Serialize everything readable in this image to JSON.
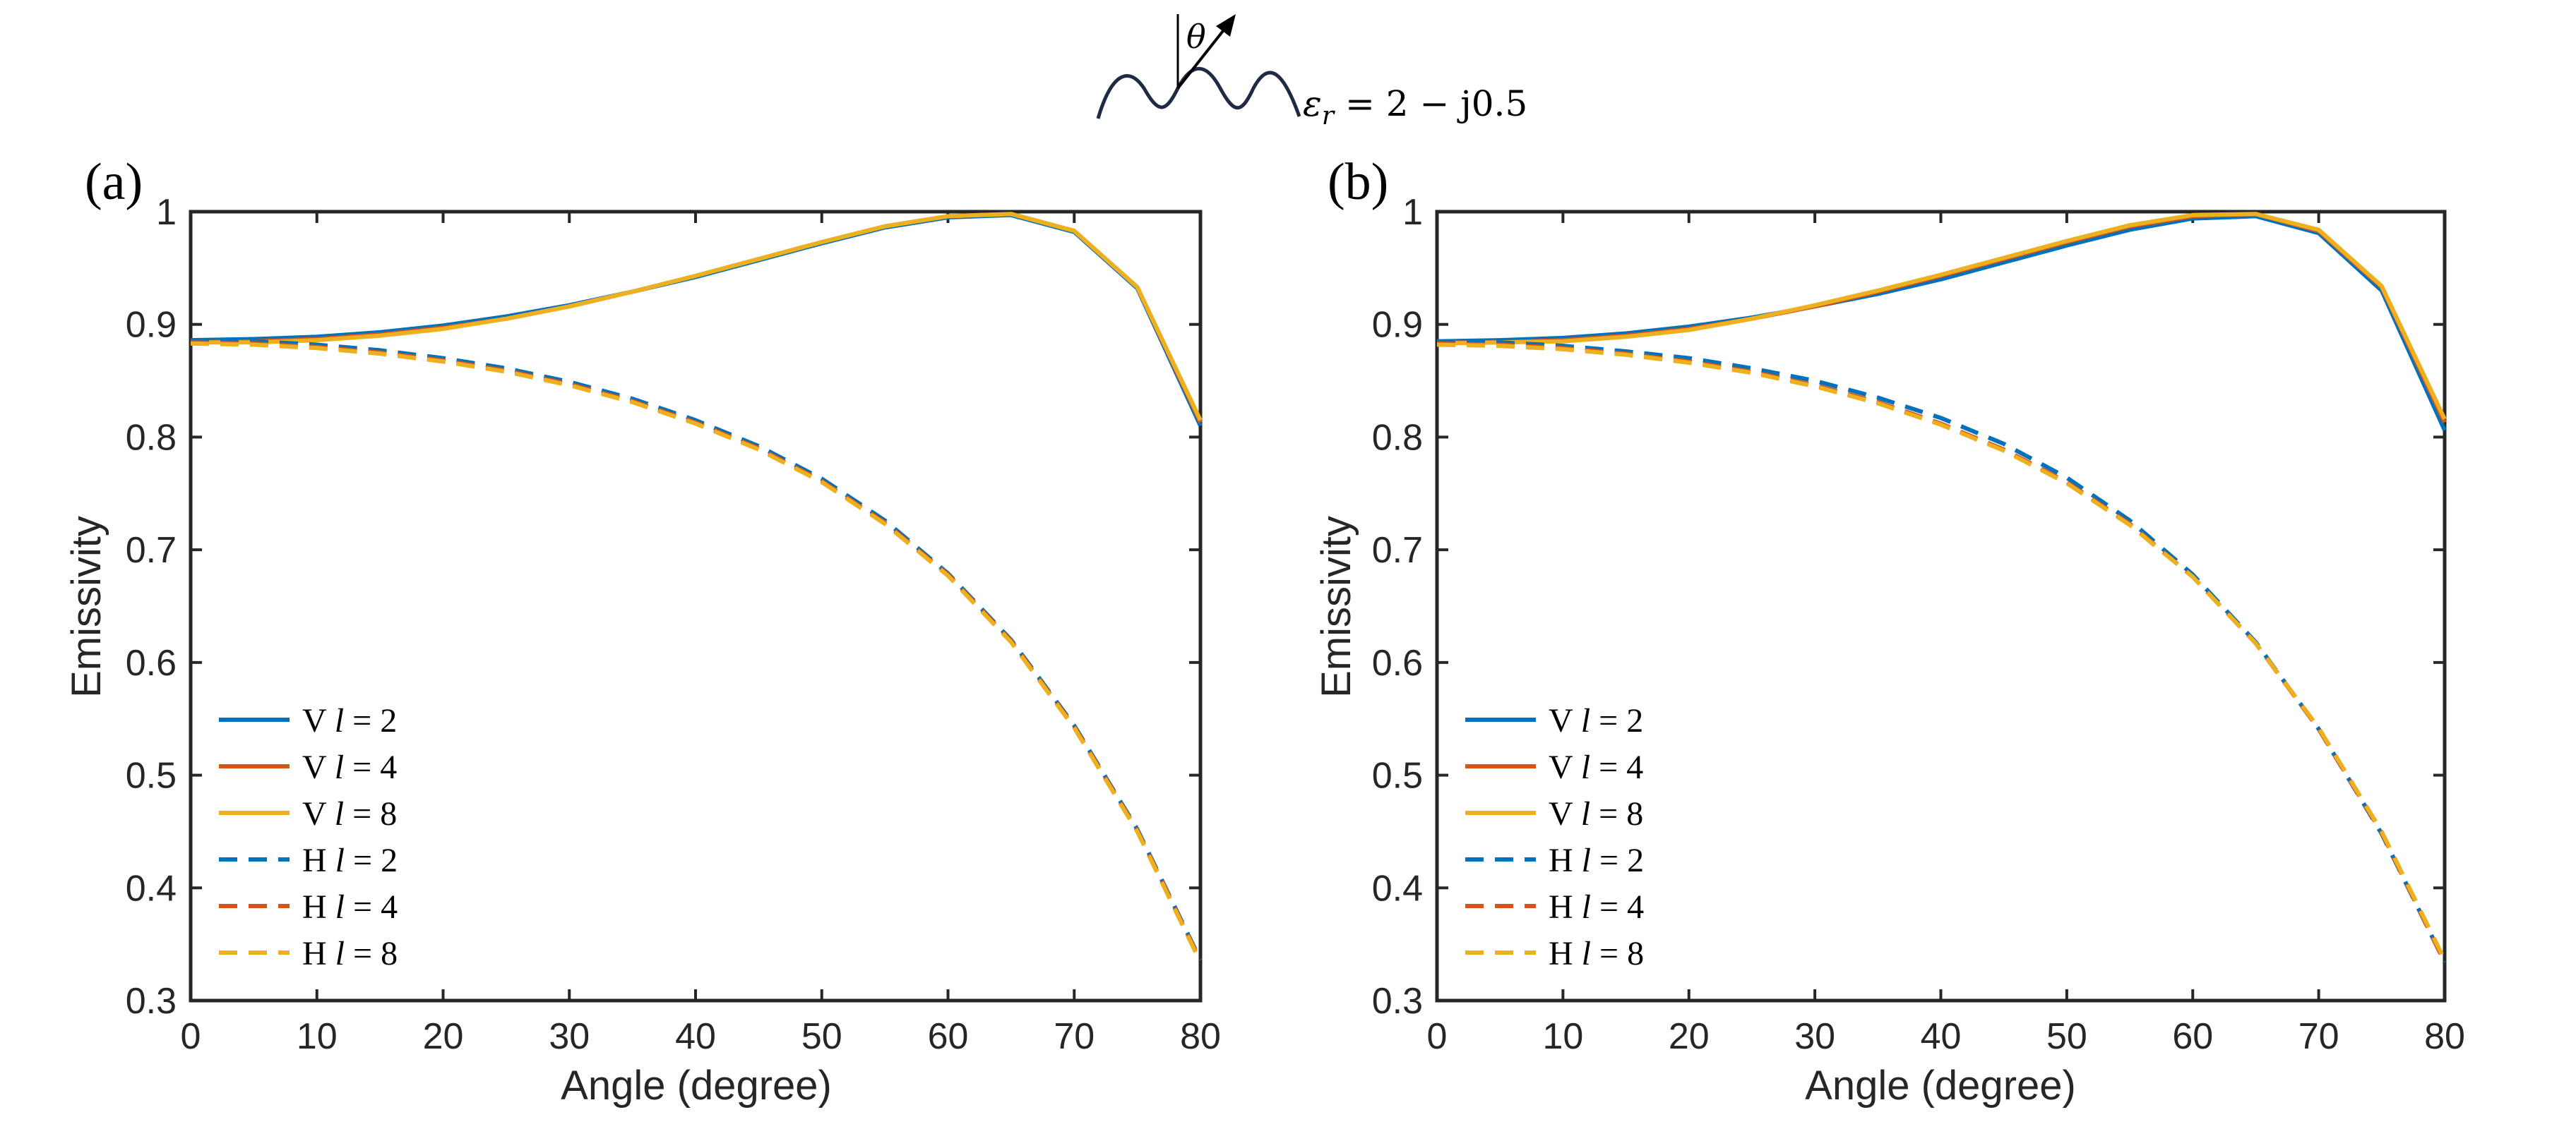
{
  "header": {
    "theta_symbol": "θ",
    "eps_symbol": "ε",
    "eps_subscript": "r",
    "equation_rhs": " = 2 − j0.5"
  },
  "colors": {
    "series_blue": "#0072BD",
    "series_red": "#D95319",
    "series_yellow": "#EDB120",
    "axis": "#262626",
    "surface": "#1f2a44"
  },
  "chart_data": [
    {
      "panel_label": "(a)",
      "type": "line",
      "title": "",
      "xlabel": "Angle (degree)",
      "ylabel": "Emissivity",
      "xlim": [
        0,
        80
      ],
      "ylim": [
        0.3,
        1.0
      ],
      "xticks": [
        0,
        10,
        20,
        30,
        40,
        50,
        60,
        70,
        80
      ],
      "yticks": [
        0.3,
        0.4,
        0.5,
        0.6,
        0.7,
        0.8,
        0.9,
        1.0
      ],
      "xtick_labels": [
        "0",
        "10",
        "20",
        "30",
        "40",
        "50",
        "60",
        "70",
        "80"
      ],
      "ytick_labels": [
        "0.3",
        "0.4",
        "0.5",
        "0.6",
        "0.7",
        "0.8",
        "0.9",
        "1"
      ],
      "grid": false,
      "legend_position": "lower-left",
      "x": [
        0,
        5,
        10,
        15,
        20,
        25,
        30,
        35,
        40,
        45,
        50,
        55,
        60,
        65,
        70,
        75,
        80
      ],
      "series": [
        {
          "pol": "V",
          "l": "2",
          "style": "solid",
          "color": "#0072BD",
          "values": [
            0.886,
            0.887,
            0.889,
            0.893,
            0.899,
            0.907,
            0.917,
            0.929,
            0.942,
            0.957,
            0.972,
            0.986,
            0.995,
            0.997,
            0.982,
            0.932,
            0.81
          ]
        },
        {
          "pol": "V",
          "l": "4",
          "style": "solid",
          "color": "#D95319",
          "values": [
            0.884,
            0.885,
            0.887,
            0.891,
            0.897,
            0.905,
            0.916,
            0.929,
            0.943,
            0.958,
            0.973,
            0.987,
            0.996,
            0.998,
            0.983,
            0.933,
            0.813
          ]
        },
        {
          "pol": "V",
          "l": "8",
          "style": "solid",
          "color": "#EDB120",
          "values": [
            0.884,
            0.884,
            0.886,
            0.89,
            0.896,
            0.905,
            0.916,
            0.929,
            0.943,
            0.958,
            0.973,
            0.987,
            0.996,
            0.998,
            0.983,
            0.933,
            0.815
          ]
        },
        {
          "pol": "H",
          "l": "2",
          "style": "dashed",
          "color": "#0072BD",
          "values": [
            0.886,
            0.885,
            0.882,
            0.877,
            0.87,
            0.861,
            0.849,
            0.834,
            0.815,
            0.792,
            0.763,
            0.726,
            0.679,
            0.62,
            0.544,
            0.452,
            0.336
          ]
        },
        {
          "pol": "H",
          "l": "4",
          "style": "dashed",
          "color": "#D95319",
          "values": [
            0.884,
            0.883,
            0.88,
            0.875,
            0.868,
            0.859,
            0.847,
            0.832,
            0.813,
            0.79,
            0.761,
            0.724,
            0.678,
            0.619,
            0.543,
            0.451,
            0.335
          ]
        },
        {
          "pol": "H",
          "l": "8",
          "style": "dashed",
          "color": "#EDB120",
          "values": [
            0.883,
            0.882,
            0.879,
            0.874,
            0.867,
            0.858,
            0.846,
            0.831,
            0.812,
            0.789,
            0.76,
            0.723,
            0.677,
            0.618,
            0.542,
            0.45,
            0.334
          ]
        }
      ]
    },
    {
      "panel_label": "(b)",
      "type": "line",
      "title": "",
      "xlabel": "Angle (degree)",
      "ylabel": "Emissivity",
      "xlim": [
        0,
        80
      ],
      "ylim": [
        0.3,
        1.0
      ],
      "xticks": [
        0,
        10,
        20,
        30,
        40,
        50,
        60,
        70,
        80
      ],
      "yticks": [
        0.3,
        0.4,
        0.5,
        0.6,
        0.7,
        0.8,
        0.9,
        1.0
      ],
      "xtick_labels": [
        "0",
        "10",
        "20",
        "30",
        "40",
        "50",
        "60",
        "70",
        "80"
      ],
      "ytick_labels": [
        "0.3",
        "0.4",
        "0.5",
        "0.6",
        "0.7",
        "0.8",
        "0.9",
        "1"
      ],
      "grid": false,
      "legend_position": "lower-left",
      "x": [
        0,
        5,
        10,
        15,
        20,
        25,
        30,
        35,
        40,
        45,
        50,
        55,
        60,
        65,
        70,
        75,
        80
      ],
      "series": [
        {
          "pol": "V",
          "l": "2",
          "style": "solid",
          "color": "#0072BD",
          "values": [
            0.885,
            0.886,
            0.888,
            0.892,
            0.898,
            0.906,
            0.916,
            0.927,
            0.94,
            0.955,
            0.97,
            0.984,
            0.994,
            0.996,
            0.981,
            0.93,
            0.806
          ]
        },
        {
          "pol": "V",
          "l": "4",
          "style": "solid",
          "color": "#D95319",
          "values": [
            0.884,
            0.884,
            0.886,
            0.89,
            0.896,
            0.905,
            0.916,
            0.929,
            0.943,
            0.958,
            0.973,
            0.987,
            0.996,
            0.998,
            0.983,
            0.933,
            0.813
          ]
        },
        {
          "pol": "V",
          "l": "8",
          "style": "solid",
          "color": "#EDB120",
          "values": [
            0.883,
            0.884,
            0.885,
            0.889,
            0.895,
            0.905,
            0.917,
            0.93,
            0.944,
            0.959,
            0.974,
            0.988,
            0.997,
            0.998,
            0.984,
            0.934,
            0.816
          ]
        },
        {
          "pol": "H",
          "l": "2",
          "style": "dashed",
          "color": "#0072BD",
          "values": [
            0.885,
            0.884,
            0.881,
            0.876,
            0.87,
            0.861,
            0.85,
            0.835,
            0.817,
            0.794,
            0.764,
            0.726,
            0.678,
            0.618,
            0.541,
            0.448,
            0.334
          ]
        },
        {
          "pol": "H",
          "l": "4",
          "style": "dashed",
          "color": "#D95319",
          "values": [
            0.883,
            0.882,
            0.879,
            0.874,
            0.867,
            0.858,
            0.846,
            0.831,
            0.812,
            0.789,
            0.76,
            0.723,
            0.676,
            0.617,
            0.541,
            0.449,
            0.334
          ]
        },
        {
          "pol": "H",
          "l": "8",
          "style": "dashed",
          "color": "#EDB120",
          "values": [
            0.882,
            0.881,
            0.878,
            0.873,
            0.866,
            0.857,
            0.845,
            0.83,
            0.811,
            0.788,
            0.759,
            0.722,
            0.676,
            0.617,
            0.542,
            0.45,
            0.336
          ]
        }
      ]
    }
  ]
}
